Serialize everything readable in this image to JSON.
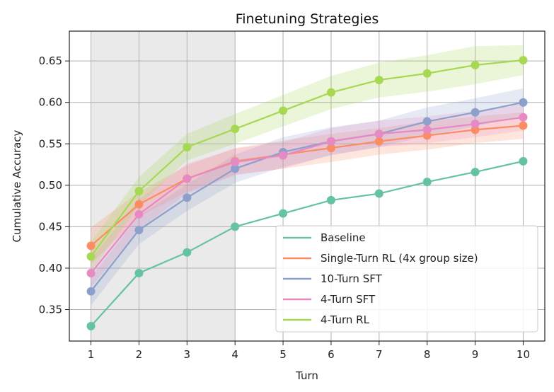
{
  "chart_data": {
    "type": "line",
    "title": "Finetuning Strategies",
    "xlabel": "Turn",
    "ylabel": "Cumulative Accuracy",
    "x": [
      1,
      2,
      3,
      4,
      5,
      6,
      7,
      8,
      9,
      10
    ],
    "xlim": [
      0.55,
      10.45
    ],
    "ylim": [
      0.312,
      0.686
    ],
    "xticks": [
      1,
      2,
      3,
      4,
      5,
      6,
      7,
      8,
      9,
      10
    ],
    "yticks": [
      0.35,
      0.4,
      0.45,
      0.5,
      0.55,
      0.6,
      0.65
    ],
    "grid": true,
    "shaded_region": [
      1,
      4
    ],
    "legend_position": "bottom-right",
    "series": [
      {
        "name": "Baseline",
        "color": "#66c2a5",
        "values": [
          0.33,
          0.394,
          0.419,
          0.45,
          0.466,
          0.482,
          0.49,
          0.504,
          0.516,
          0.529
        ]
      },
      {
        "name": "Single-Turn RL (4x group size)",
        "color": "#fc8d62",
        "values": [
          0.427,
          0.477,
          0.508,
          0.529,
          0.537,
          0.545,
          0.553,
          0.56,
          0.567,
          0.572
        ],
        "band_lower": [
          0.405,
          0.462,
          0.492,
          0.513,
          0.52,
          0.528,
          0.537,
          0.543,
          0.551,
          0.556
        ],
        "band_upper": [
          0.449,
          0.492,
          0.524,
          0.545,
          0.554,
          0.562,
          0.569,
          0.577,
          0.583,
          0.588
        ]
      },
      {
        "name": "10-Turn SFT",
        "color": "#8da0cb",
        "values": [
          0.372,
          0.446,
          0.485,
          0.52,
          0.54,
          0.553,
          0.562,
          0.577,
          0.588,
          0.6
        ],
        "band_lower": [
          0.355,
          0.429,
          0.469,
          0.503,
          0.522,
          0.536,
          0.546,
          0.56,
          0.571,
          0.583
        ],
        "band_upper": [
          0.389,
          0.463,
          0.501,
          0.537,
          0.558,
          0.57,
          0.578,
          0.594,
          0.605,
          0.617
        ]
      },
      {
        "name": "4-Turn SFT",
        "color": "#e78ac3",
        "values": [
          0.394,
          0.465,
          0.508,
          0.528,
          0.536,
          0.553,
          0.562,
          0.567,
          0.574,
          0.582
        ],
        "band_lower": [
          0.377,
          0.447,
          0.49,
          0.512,
          0.52,
          0.537,
          0.546,
          0.551,
          0.558,
          0.566
        ],
        "band_upper": [
          0.411,
          0.483,
          0.526,
          0.544,
          0.552,
          0.569,
          0.578,
          0.583,
          0.59,
          0.598
        ]
      },
      {
        "name": "4-Turn RL",
        "color": "#a6d854",
        "values": [
          0.414,
          0.493,
          0.546,
          0.568,
          0.59,
          0.612,
          0.627,
          0.635,
          0.645,
          0.651
        ],
        "band_lower": [
          0.396,
          0.476,
          0.53,
          0.55,
          0.571,
          0.592,
          0.606,
          0.613,
          0.622,
          0.633
        ],
        "band_upper": [
          0.432,
          0.51,
          0.562,
          0.586,
          0.609,
          0.632,
          0.648,
          0.657,
          0.668,
          0.669
        ]
      }
    ]
  }
}
